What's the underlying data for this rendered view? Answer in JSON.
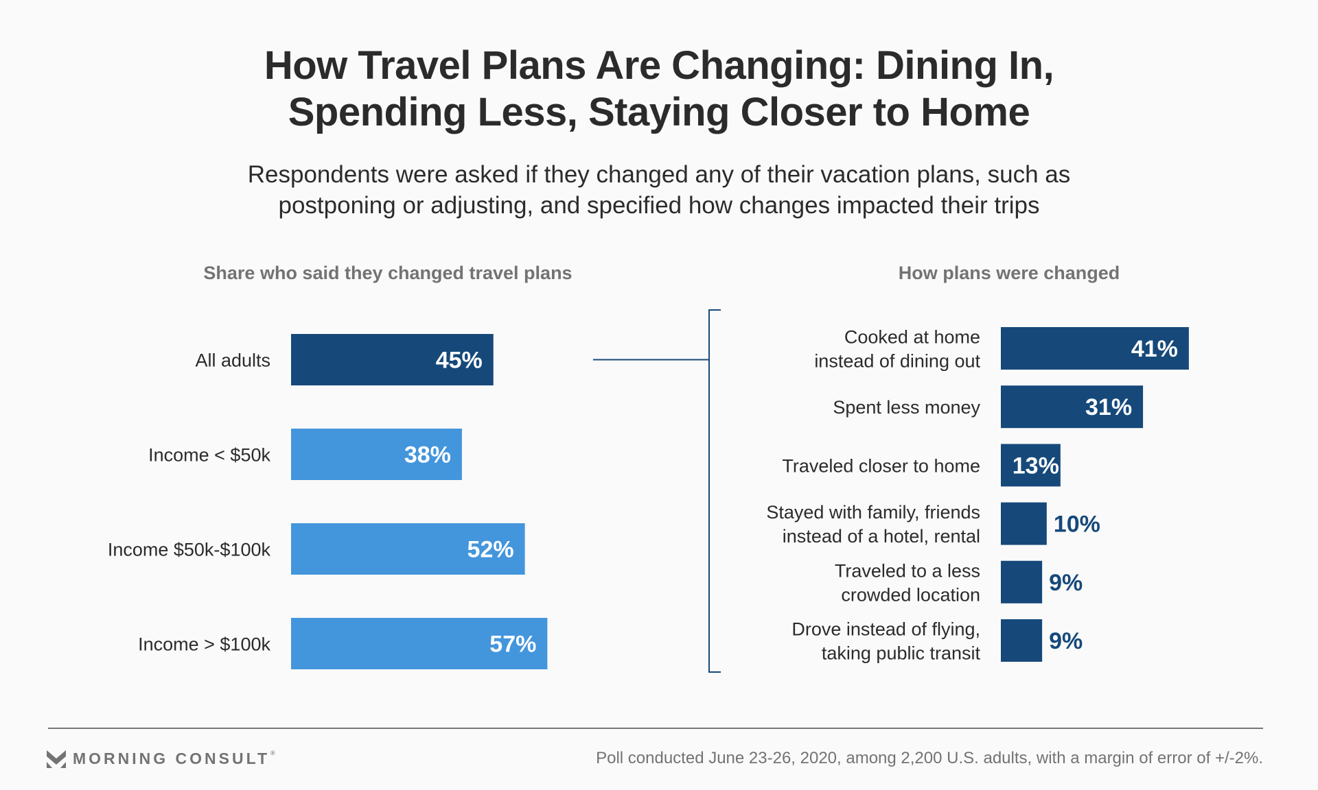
{
  "header": {
    "title_line1": "How Travel Plans Are Changing: Dining In,",
    "title_line2": "Spending Less, Staying Closer to Home",
    "subtitle_line1": "Respondents were asked if they changed any of their vacation plans, such as",
    "subtitle_line2": "postponing or adjusting, and specified how changes impacted their trips"
  },
  "colors": {
    "dark_blue": "#16497a",
    "light_blue": "#4395dc",
    "text": "#2b2b2b",
    "muted": "#737373",
    "background": "#fafafa"
  },
  "chart_data": [
    {
      "type": "bar",
      "orientation": "horizontal",
      "title": "Share who said they changed travel plans",
      "categories": [
        "All adults",
        "Income < $50k",
        "Income $50k-$100k",
        "Income > $100k"
      ],
      "values": [
        45,
        38,
        52,
        57
      ],
      "labels": [
        "45%",
        "38%",
        "52%",
        "57%"
      ],
      "bar_colors": [
        "#16497a",
        "#4395dc",
        "#4395dc",
        "#4395dc"
      ],
      "unit": "%",
      "xlim": [
        0,
        100
      ],
      "grid": false
    },
    {
      "type": "bar",
      "orientation": "horizontal",
      "title": "How plans were changed",
      "categories": [
        [
          "Cooked at home",
          "instead of dining out"
        ],
        [
          "Spent less money"
        ],
        [
          "Traveled closer to home"
        ],
        [
          "Stayed with family, friends",
          "instead of a hotel, rental"
        ],
        [
          "Traveled to a less",
          "crowded location"
        ],
        [
          "Drove instead of flying,",
          "taking public transit"
        ]
      ],
      "values": [
        41,
        31,
        13,
        10,
        9,
        9
      ],
      "labels": [
        "41%",
        "31%",
        "13%",
        "10%",
        "9%",
        "9%"
      ],
      "bar_colors": [
        "#16497a",
        "#16497a",
        "#16497a",
        "#16497a",
        "#16497a",
        "#16497a"
      ],
      "unit": "%",
      "xlim": [
        0,
        100
      ],
      "grid": false,
      "annotation": "bracket connecting 'All adults' bar to breakdown"
    }
  ],
  "footer": {
    "logo_text": "MORNING CONSULT",
    "logo_reg": "®",
    "source": "Poll conducted June 23-26, 2020, among 2,200 U.S. adults, with a margin of error of +/-2%."
  }
}
